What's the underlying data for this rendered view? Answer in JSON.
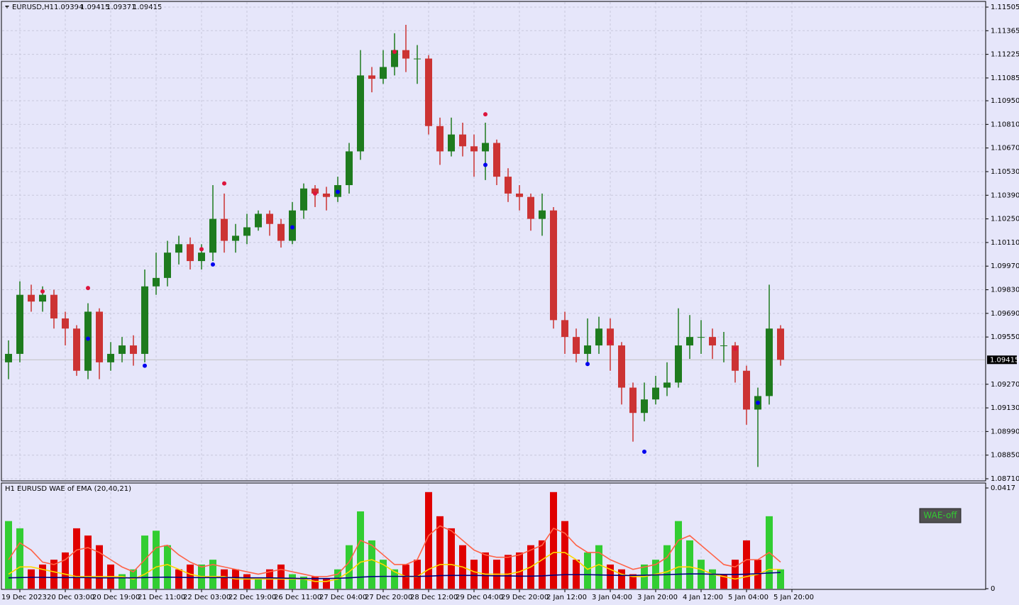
{
  "chart_data": {
    "type": "candlestick",
    "symbol": "EURUSD,H1",
    "header_values": [
      1.09394,
      1.09415,
      1.09371,
      1.09415
    ],
    "last_price": 1.09415,
    "background": "#e6e6fa",
    "grid": true,
    "bull_color": "#1e7b1e",
    "bear_color": "#cc3333",
    "categories": [
      null,
      "19 Dec 2023",
      null,
      null,
      null,
      "20 Dec 03:00",
      null,
      null,
      null,
      "20 Dec 19:00",
      null,
      null,
      null,
      "21 Dec 11:00",
      null,
      null,
      null,
      "22 Dec 03:00",
      null,
      null,
      null,
      "22 Dec 19:00",
      null,
      null,
      null,
      "26 Dec 11:00",
      null,
      null,
      null,
      "27 Dec 04:00",
      null,
      null,
      null,
      "27 Dec 20:00",
      null,
      null,
      null,
      "28 Dec 12:00",
      null,
      null,
      null,
      "29 Dec 04:00",
      null,
      null,
      null,
      "29 Dec 20:00",
      null,
      null,
      null,
      "2 Jan 12:00",
      null,
      null,
      null,
      "3 Jan 04:00",
      null,
      null,
      null,
      "3 Jan 20:00",
      null,
      null,
      null,
      "4 Jan 12:00",
      null,
      null,
      null,
      "5 Jan 04:00",
      null,
      null,
      null,
      "5 Jan 20:00"
    ],
    "open": [
      1.094,
      1.0945,
      1.098,
      1.0976,
      1.098,
      1.0966,
      1.096,
      1.0935,
      1.097,
      1.094,
      1.0945,
      1.095,
      1.0945,
      1.0985,
      1.099,
      1.1005,
      1.101,
      1.1,
      1.1005,
      1.1025,
      1.1012,
      1.1015,
      1.102,
      1.1028,
      1.1022,
      1.1012,
      1.103,
      1.1043,
      1.104,
      1.1038,
      1.1045,
      1.1065,
      1.111,
      1.1108,
      1.1115,
      1.1125,
      1.112,
      1.112,
      1.108,
      1.1065,
      1.1075,
      1.1068,
      1.1065,
      1.107,
      1.105,
      1.104,
      1.1038,
      1.1025,
      1.103,
      1.0965,
      1.0955,
      1.0945,
      1.095,
      1.096,
      1.095,
      1.0925,
      1.091,
      1.0918,
      1.0925,
      1.0928,
      1.095,
      1.0955,
      1.0955,
      1.095,
      1.095,
      1.0935,
      1.0912,
      1.092,
      1.096,
      null
    ],
    "high": [
      1.0953,
      1.0988,
      1.0986,
      1.0985,
      1.0983,
      1.097,
      1.0962,
      1.0975,
      1.0972,
      1.0952,
      1.0955,
      1.0956,
      1.0995,
      1.1005,
      1.1012,
      1.1015,
      1.1014,
      1.101,
      1.1045,
      1.104,
      1.1022,
      1.1028,
      1.103,
      1.103,
      1.1025,
      1.1035,
      1.1046,
      1.1045,
      1.1044,
      1.105,
      1.107,
      1.1125,
      1.1115,
      1.1125,
      1.1135,
      1.114,
      1.1128,
      1.1122,
      1.1085,
      1.1085,
      1.1082,
      1.1075,
      1.1082,
      1.1072,
      1.1055,
      1.1045,
      1.104,
      1.104,
      1.1032,
      1.097,
      1.096,
      1.0966,
      1.0967,
      1.0966,
      1.0952,
      1.0928,
      1.0928,
      1.0932,
      1.094,
      1.0972,
      1.0968,
      1.0965,
      1.096,
      1.0958,
      1.0952,
      1.0938,
      1.0925,
      1.0986,
      1.0962,
      null
    ],
    "low": [
      1.093,
      1.094,
      1.097,
      1.097,
      1.096,
      1.095,
      1.0932,
      1.093,
      1.093,
      1.0935,
      1.094,
      1.0938,
      1.094,
      1.098,
      1.0985,
      1.0998,
      1.0995,
      1.0995,
      1.1,
      1.1005,
      1.1005,
      1.101,
      1.1018,
      1.1015,
      1.1008,
      1.101,
      1.1025,
      1.1032,
      1.103,
      1.1035,
      1.104,
      1.106,
      1.11,
      1.1105,
      1.111,
      1.1112,
      1.1105,
      1.1075,
      1.1057,
      1.1062,
      1.1062,
      1.105,
      1.1048,
      1.1045,
      1.1035,
      1.103,
      1.1018,
      1.1015,
      1.096,
      1.0945,
      1.094,
      1.094,
      1.0945,
      1.0935,
      1.0915,
      1.0893,
      1.0905,
      1.0915,
      1.092,
      1.0925,
      1.0942,
      1.0945,
      1.0942,
      1.094,
      1.0928,
      1.0903,
      1.0878,
      1.0915,
      1.0938,
      null
    ],
    "close": [
      1.0945,
      1.098,
      1.0976,
      1.098,
      1.0966,
      1.096,
      1.0935,
      1.097,
      1.094,
      1.0945,
      1.095,
      1.0945,
      1.0985,
      1.099,
      1.1005,
      1.101,
      1.1,
      1.1005,
      1.1025,
      1.1012,
      1.1015,
      1.102,
      1.1028,
      1.1022,
      1.1012,
      1.103,
      1.1043,
      1.104,
      1.1038,
      1.1045,
      1.1065,
      1.111,
      1.1108,
      1.1115,
      1.1125,
      1.112,
      1.112,
      1.108,
      1.1065,
      1.1075,
      1.1068,
      1.1065,
      1.107,
      1.105,
      1.104,
      1.1038,
      1.1025,
      1.103,
      1.0965,
      1.0955,
      1.0945,
      1.095,
      1.096,
      1.095,
      1.0925,
      1.091,
      1.0918,
      1.0925,
      1.0928,
      1.095,
      1.0955,
      1.0955,
      1.095,
      1.095,
      1.0935,
      1.0912,
      1.092,
      1.096,
      1.09415,
      null
    ],
    "fractal_up": {
      "color": "#dc143c",
      "values": [
        null,
        null,
        null,
        1.0982,
        null,
        null,
        null,
        1.0984,
        null,
        null,
        null,
        null,
        null,
        null,
        null,
        null,
        null,
        1.1007,
        null,
        1.1046,
        null,
        null,
        null,
        null,
        null,
        null,
        null,
        1.104,
        null,
        null,
        null,
        null,
        null,
        null,
        1.1124,
        null,
        null,
        null,
        null,
        null,
        null,
        null,
        1.1087,
        null,
        null,
        null,
        null,
        null,
        null,
        null,
        null,
        null,
        null,
        1.0952,
        null,
        null,
        null,
        null,
        null,
        null,
        null,
        null,
        null,
        null,
        1.0948,
        null,
        null,
        null,
        null,
        null
      ]
    },
    "fractal_down": {
      "color": "#0000ee",
      "values": [
        null,
        null,
        null,
        null,
        null,
        null,
        null,
        1.0954,
        null,
        null,
        null,
        null,
        1.0938,
        null,
        null,
        null,
        null,
        null,
        1.0998,
        null,
        null,
        null,
        null,
        null,
        null,
        1.102,
        null,
        null,
        null,
        1.1041,
        null,
        null,
        null,
        null,
        null,
        null,
        null,
        null,
        null,
        null,
        null,
        null,
        1.1057,
        null,
        null,
        null,
        null,
        null,
        null,
        null,
        null,
        1.0939,
        null,
        null,
        null,
        null,
        1.0887,
        null,
        null,
        null,
        null,
        null,
        null,
        null,
        null,
        null,
        1.0916,
        null,
        null,
        null
      ]
    },
    "ylim": [
      1.0871,
      1.11505
    ],
    "yticks": [
      {
        "value": 1.11505,
        "label": "1.11505"
      },
      {
        "value": 1.11365,
        "label": "1.11365"
      },
      {
        "value": 1.11225,
        "label": "1.11225"
      },
      {
        "value": 1.11085,
        "label": "1.11085"
      },
      {
        "value": 1.1095,
        "label": "1.10950"
      },
      {
        "value": 1.1081,
        "label": "1.10810"
      },
      {
        "value": 1.1067,
        "label": "1.10670"
      },
      {
        "value": 1.1053,
        "label": "1.10530"
      },
      {
        "value": 1.1039,
        "label": "1.10390"
      },
      {
        "value": 1.1025,
        "label": "1.10250"
      },
      {
        "value": 1.1011,
        "label": "1.10110"
      },
      {
        "value": 1.0997,
        "label": "1.09970"
      },
      {
        "value": 1.0983,
        "label": "1.09830"
      },
      {
        "value": 1.0969,
        "label": "1.09690"
      },
      {
        "value": 1.0955,
        "label": "1.09550"
      },
      {
        "value": 1.0927,
        "label": "1.09270"
      },
      {
        "value": 1.0913,
        "label": "1.09130"
      },
      {
        "value": 1.0899,
        "label": "1.08990"
      },
      {
        "value": 1.0885,
        "label": "1.08850"
      },
      {
        "value": 1.0871,
        "label": "1.08710"
      }
    ],
    "indicator": {
      "title": "H1 EURUSD WAE of EMA (20,40,21)",
      "button": "WAE-off",
      "ylim": [
        0,
        0.0417
      ],
      "yticks": [
        0.0417,
        0
      ],
      "bars": [
        {
          "color": "#32cd32",
          "values": [
            0.028,
            0.025,
            null,
            null,
            null,
            null,
            null,
            null,
            null,
            null,
            0.006,
            0.008,
            0.022,
            0.024,
            0.018,
            null,
            null,
            0.01,
            0.012,
            null,
            null,
            null,
            0.004,
            null,
            null,
            0.006,
            0.005,
            null,
            null,
            0.008,
            0.018,
            0.032,
            0.02,
            0.012,
            0.008,
            null,
            null,
            null,
            null,
            null,
            null,
            null,
            null,
            null,
            null,
            null,
            null,
            null,
            null,
            null,
            null,
            0.015,
            0.018,
            null,
            null,
            null,
            0.01,
            0.012,
            0.018,
            0.028,
            0.02,
            0.012,
            0.008,
            null,
            null,
            null,
            null,
            0.03,
            0.008,
            null
          ]
        },
        {
          "color": "#e00000",
          "values": [
            null,
            null,
            0.008,
            0.01,
            0.012,
            0.015,
            0.025,
            0.022,
            0.018,
            0.01,
            null,
            null,
            null,
            null,
            null,
            0.008,
            0.01,
            null,
            null,
            0.008,
            0.008,
            0.006,
            null,
            0.008,
            0.01,
            null,
            null,
            0.005,
            0.004,
            null,
            null,
            null,
            null,
            null,
            null,
            0.01,
            0.012,
            0.04,
            0.03,
            0.025,
            0.018,
            0.012,
            0.015,
            0.012,
            0.014,
            0.015,
            0.018,
            0.02,
            0.04,
            0.028,
            0.012,
            null,
            null,
            0.01,
            0.008,
            0.006,
            null,
            null,
            null,
            null,
            null,
            null,
            null,
            0.006,
            0.012,
            0.02,
            0.012,
            null,
            null,
            null
          ]
        }
      ],
      "lines": [
        {
          "color": "#ff6347",
          "values": [
            0.012,
            0.019,
            0.016,
            0.011,
            0.01,
            0.012,
            0.016,
            0.017,
            0.015,
            0.012,
            0.009,
            0.007,
            0.012,
            0.017,
            0.018,
            0.014,
            0.011,
            0.009,
            0.01,
            0.009,
            0.008,
            0.007,
            0.006,
            0.007,
            0.008,
            0.007,
            0.006,
            0.005,
            0.005,
            0.006,
            0.011,
            0.02,
            0.018,
            0.014,
            0.01,
            0.01,
            0.012,
            0.022,
            0.026,
            0.024,
            0.02,
            0.016,
            0.014,
            0.013,
            0.013,
            0.014,
            0.016,
            0.018,
            0.025,
            0.023,
            0.018,
            0.015,
            0.015,
            0.012,
            0.01,
            0.008,
            0.009,
            0.01,
            0.013,
            0.02,
            0.022,
            0.018,
            0.014,
            0.01,
            0.009,
            0.012,
            0.012,
            0.015,
            0.011,
            null
          ]
        },
        {
          "color": "#ffd700",
          "values": [
            0.006,
            0.009,
            0.009,
            0.008,
            0.007,
            0.006,
            0.005,
            0.005,
            0.005,
            0.005,
            0.005,
            0.004,
            0.006,
            0.009,
            0.01,
            0.008,
            0.006,
            0.005,
            0.005,
            0.005,
            0.004,
            0.004,
            0.004,
            0.004,
            0.004,
            0.004,
            0.004,
            0.003,
            0.003,
            0.004,
            0.007,
            0.011,
            0.012,
            0.01,
            0.007,
            0.005,
            0.005,
            0.008,
            0.01,
            0.01,
            0.009,
            0.007,
            0.006,
            0.006,
            0.006,
            0.007,
            0.009,
            0.012,
            0.015,
            0.015,
            0.012,
            0.008,
            0.01,
            0.008,
            0.006,
            0.005,
            0.005,
            0.006,
            0.007,
            0.009,
            0.009,
            0.008,
            0.006,
            0.005,
            0.004,
            0.005,
            0.006,
            0.008,
            0.008,
            null
          ]
        },
        {
          "color": "#000080",
          "values": [
            0.0045,
            0.0046,
            0.0047,
            0.0047,
            0.0046,
            0.0046,
            0.0046,
            0.0046,
            0.0045,
            0.0045,
            0.0045,
            0.0045,
            0.0046,
            0.0047,
            0.0048,
            0.0047,
            0.0046,
            0.0046,
            0.0046,
            0.0046,
            0.0046,
            0.0045,
            0.0045,
            0.0045,
            0.0044,
            0.0043,
            0.0042,
            0.0042,
            0.0042,
            0.0043,
            0.0045,
            0.0048,
            0.005,
            0.0051,
            0.0051,
            0.0051,
            0.0051,
            0.0052,
            0.0054,
            0.0055,
            0.0055,
            0.0055,
            0.0054,
            0.0053,
            0.0053,
            0.0052,
            0.0052,
            0.0053,
            0.0056,
            0.0058,
            0.0058,
            0.0058,
            0.0057,
            0.0056,
            0.0055,
            0.0055,
            0.0056,
            0.0057,
            0.0058,
            0.006,
            0.0061,
            0.0061,
            0.006,
            0.0059,
            0.0059,
            0.006,
            0.0062,
            0.0065,
            0.0067,
            null
          ]
        }
      ]
    }
  }
}
